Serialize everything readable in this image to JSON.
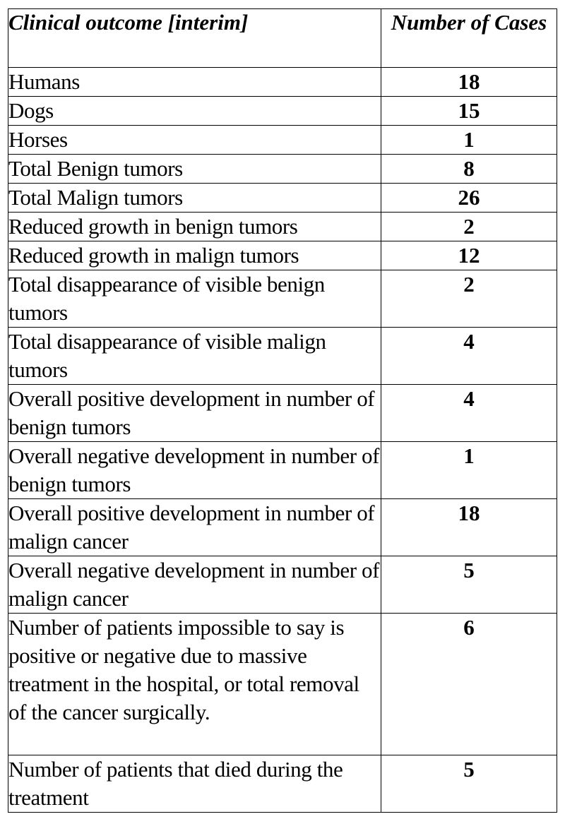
{
  "table": {
    "header": {
      "outcome": "Clinical outcome [interim]",
      "cases": "Number of Cases"
    },
    "rows": [
      {
        "outcome": "Humans",
        "cases": "18"
      },
      {
        "outcome": "Dogs",
        "cases": "15"
      },
      {
        "outcome": "Horses",
        "cases": "1"
      },
      {
        "outcome": "Total Benign tumors",
        "cases": "8"
      },
      {
        "outcome": "Total Malign tumors",
        "cases": "26"
      },
      {
        "outcome": "Reduced growth in benign tumors",
        "cases": "2"
      },
      {
        "outcome": "Reduced growth in malign tumors",
        "cases": "12"
      },
      {
        "outcome": "Total disappearance of visible benign tumors",
        "cases": "2"
      },
      {
        "outcome": "Total disappearance of visible malign tumors",
        "cases": "4"
      },
      {
        "outcome": "Overall positive development in number of benign tumors",
        "cases": "4"
      },
      {
        "outcome": "Overall negative development in number of benign tumors",
        "cases": "1"
      },
      {
        "outcome": "Overall positive development in number of malign cancer",
        "cases": "18"
      },
      {
        "outcome": "Overall negative development in number of malign cancer",
        "cases": "5"
      },
      {
        "outcome": "Number of patients impossible to say is positive or negative due to massive treatment in the hospital, or total removal of the cancer surgically.",
        "cases": "6"
      },
      {
        "outcome": "Number of patients that died during the treatment",
        "cases": "5"
      }
    ]
  }
}
